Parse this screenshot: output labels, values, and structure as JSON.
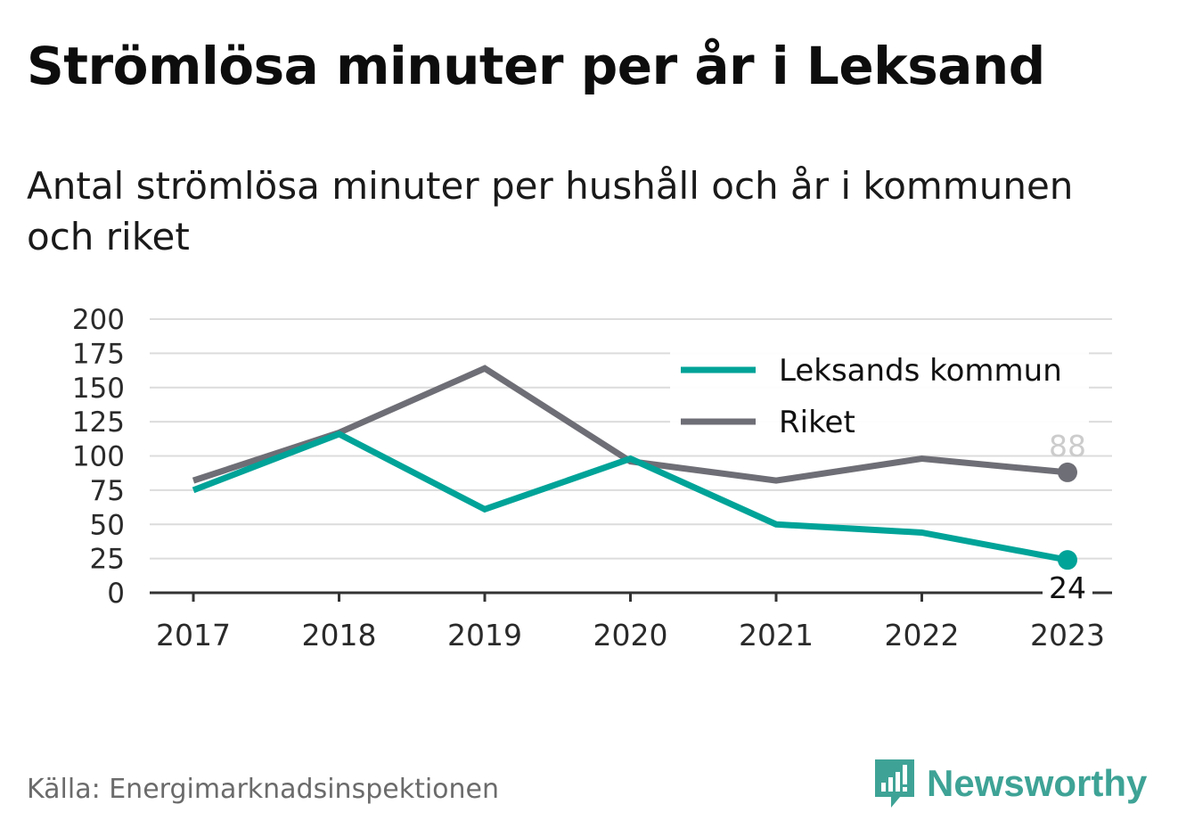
{
  "title": "Strömlösa minuter per år i Leksand",
  "subtitle": "Antal strömlösa minuter per hushåll och år i kommunen och riket",
  "source": "Källa: Energimarknadsinspektionen",
  "brand": {
    "name": "Newsworthy",
    "icon": "newsworthy-logo-icon",
    "color": "#3ea396"
  },
  "chart_data": {
    "type": "line",
    "x": [
      "2017",
      "2018",
      "2019",
      "2020",
      "2021",
      "2022",
      "2023"
    ],
    "ylim": [
      0,
      200
    ],
    "yticks": [
      "0",
      "25",
      "50",
      "75",
      "100",
      "125",
      "150",
      "175",
      "200"
    ],
    "grid": true,
    "legend_position": "top-right",
    "series": [
      {
        "name": "Leksands kommun",
        "color": "#00a398",
        "values": [
          75,
          116,
          61,
          98,
          50,
          44,
          24
        ],
        "end_label": "24"
      },
      {
        "name": "Riket",
        "color": "#6e6e76",
        "values": [
          82,
          117,
          164,
          96,
          82,
          98,
          88
        ],
        "end_label": "88"
      }
    ]
  }
}
